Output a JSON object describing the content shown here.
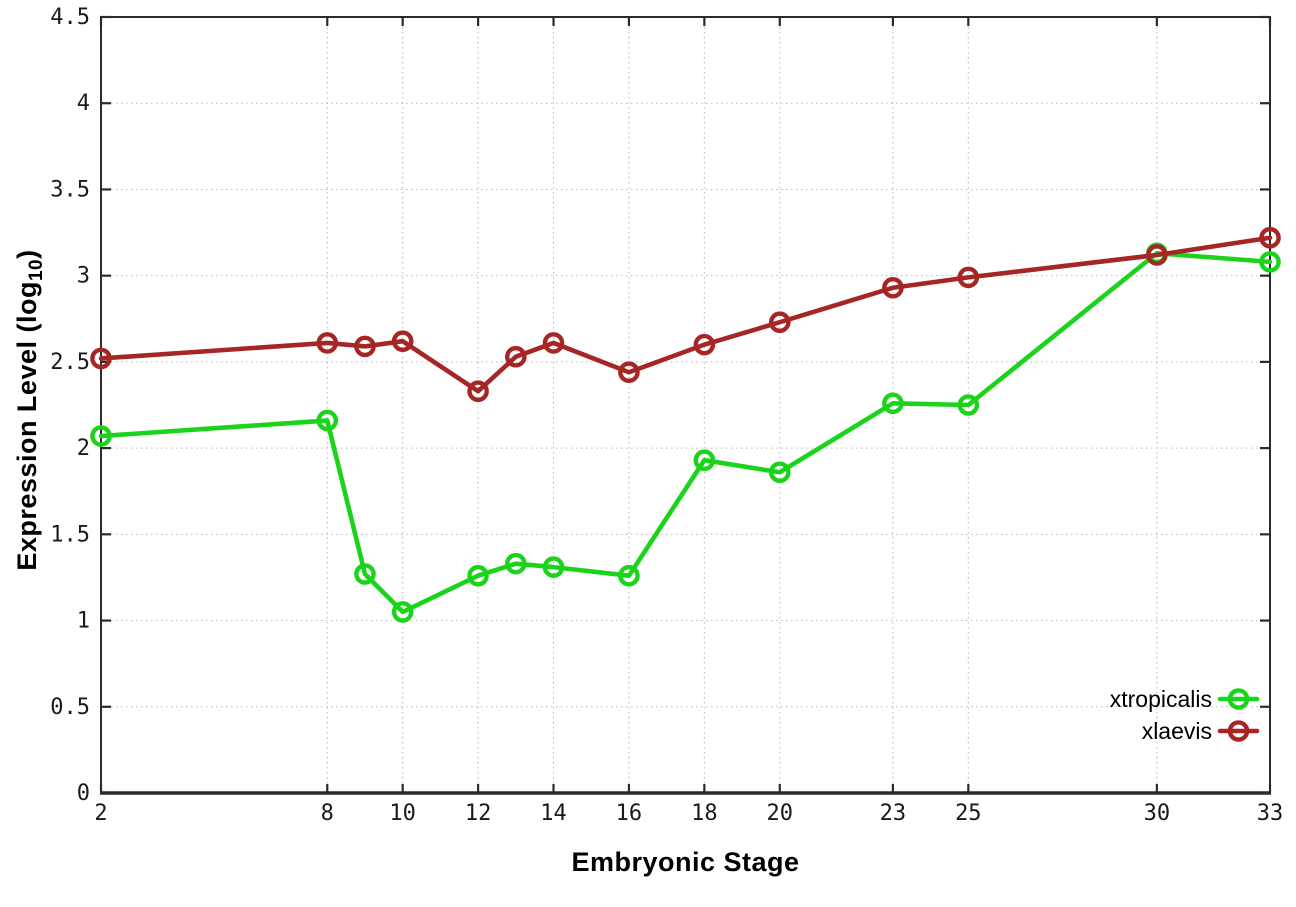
{
  "chart_data": {
    "type": "line",
    "title": "",
    "xlabel": "Embryonic Stage",
    "ylabel": "Expression Level (log10)",
    "ylabel_parts": {
      "main": "Expression Level (log",
      "sub": "10",
      "close": ")"
    },
    "xlim": [
      2,
      33
    ],
    "ylim": [
      0,
      4.5
    ],
    "xticks": [
      "2",
      "8",
      "10",
      "12",
      "14",
      "16",
      "18",
      "20",
      "23",
      "25",
      "30",
      "33"
    ],
    "yticks": [
      "0",
      "0.5",
      "1",
      "1.5",
      "2",
      "2.5",
      "3",
      "3.5",
      "4",
      "4.5"
    ],
    "grid": true,
    "legend_position": "inside-bottom-right",
    "x": [
      2,
      8,
      9,
      10,
      12,
      13,
      14,
      16,
      18,
      20,
      23,
      25,
      30,
      33
    ],
    "series": [
      {
        "name": "xtropicalis",
        "color": "#1bd31b",
        "marker": "open-circle",
        "values": [
          2.07,
          2.16,
          1.27,
          1.05,
          1.26,
          1.33,
          1.31,
          1.26,
          1.93,
          1.86,
          2.26,
          2.25,
          3.13,
          3.08
        ]
      },
      {
        "name": "xlaevis",
        "color": "#a62626",
        "marker": "open-circle",
        "values": [
          2.52,
          2.61,
          2.59,
          2.62,
          2.33,
          2.53,
          2.61,
          2.44,
          2.6,
          2.73,
          2.93,
          2.99,
          3.12,
          3.22
        ]
      }
    ]
  },
  "colors": {
    "background": "#ffffff",
    "border": "#2b2b2b",
    "grid": "#b8b8b8",
    "tick_text": "#1a1a1a",
    "series_green": "#1bd31b",
    "series_red": "#a62626"
  }
}
